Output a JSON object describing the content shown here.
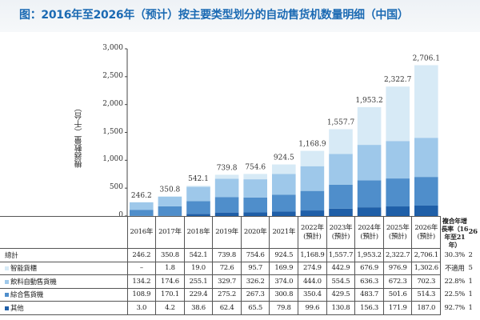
{
  "title": "图：2016年至2026年（预计）按主要类型划分的自动售货机数量明细（中国）",
  "chart_data": {
    "type": "stacked-bar",
    "ylabel": "機器數量（千台）",
    "ylim": [
      0,
      3000
    ],
    "yticks": [
      "0",
      "500",
      "1,000",
      "1,500",
      "2,000",
      "2,500",
      "3,000"
    ],
    "categories": [
      "2016年",
      "2017年",
      "2018年",
      "2019年",
      "2020年",
      "2021年",
      "2022年",
      "2023年",
      "2024年",
      "2025年",
      "2026年"
    ],
    "category_notes": [
      "",
      "",
      "",
      "",
      "",
      "",
      "(預計)",
      "(預計)",
      "(預計)",
      "(預計)",
      "(預計)"
    ],
    "totals": [
      246.2,
      350.8,
      542.1,
      739.8,
      754.6,
      924.5,
      1168.9,
      1557.7,
      1953.2,
      2322.7,
      2706.1
    ],
    "total_labels": [
      "246.2",
      "350.8",
      "542.1",
      "739.8",
      "754.6",
      "924.5",
      "1,168.9",
      "1,557.7",
      "1,953.2",
      "2,322.7",
      "2,706.1"
    ],
    "series": [
      {
        "name": "其他",
        "color": "#1f5fa8",
        "values": [
          3.0,
          4.2,
          38.6,
          62.4,
          65.5,
          79.8,
          99.6,
          130.8,
          156.3,
          171.9,
          187.0
        ]
      },
      {
        "name": "綜合售貨機",
        "color": "#4f8ecb",
        "values": [
          108.9,
          170.1,
          229.4,
          275.2,
          267.3,
          300.8,
          350.4,
          429.5,
          483.7,
          501.6,
          514.3
        ]
      },
      {
        "name": "飲料自動售貨機",
        "color": "#9ec8ea",
        "values": [
          134.2,
          174.6,
          255.1,
          329.7,
          326.2,
          374.0,
          444.0,
          554.5,
          636.3,
          672.3,
          702.3
        ]
      },
      {
        "name": "智能貨櫃",
        "color": "#d7eaf6",
        "values": [
          0,
          1.8,
          19.0,
          72.6,
          95.7,
          169.9,
          274.9,
          442.9,
          676.9,
          976.9,
          1302.6
        ]
      }
    ]
  },
  "table": {
    "cagr_header": "複合年增長率（16年至21年）",
    "cagr2_header": "26",
    "rows": [
      {
        "label": "總計",
        "cells": [
          "246.2",
          "350.8",
          "542.1",
          "739.8",
          "754.6",
          "924.5",
          "1,168.9",
          "1,557.7",
          "1,953.2",
          "2,322.7",
          "2,706.1"
        ],
        "cagr": "30.3%",
        "cagr2": "2",
        "color": ""
      },
      {
        "label": "智能貨櫃",
        "cells": [
          "–",
          "1.8",
          "19.0",
          "72.6",
          "95.7",
          "169.9",
          "274.9",
          "442.9",
          "676.9",
          "976.9",
          "1,302.6"
        ],
        "cagr": "不適用",
        "cagr2": "5",
        "color": "#d7eaf6"
      },
      {
        "label": "飲料自動售貨機",
        "cells": [
          "134.2",
          "174.6",
          "255.1",
          "329.7",
          "326.2",
          "374.0",
          "444.0",
          "554.5",
          "636.3",
          "672.3",
          "702.3"
        ],
        "cagr": "22.8%",
        "cagr2": "1",
        "color": "#9ec8ea"
      },
      {
        "label": "綜合售貨機",
        "cells": [
          "108.9",
          "170.1",
          "229.4",
          "275.2",
          "267.3",
          "300.8",
          "350.4",
          "429.5",
          "483.7",
          "501.6",
          "514.3"
        ],
        "cagr": "22.5%",
        "cagr2": "1",
        "color": "#4f8ecb"
      },
      {
        "label": "其他",
        "cells": [
          "3.0",
          "4.2",
          "38.6",
          "62.4",
          "65.5",
          "79.8",
          "99.6",
          "130.8",
          "156.3",
          "171.9",
          "187.0"
        ],
        "cagr": "92.7%",
        "cagr2": "1",
        "color": "#1f5fa8"
      }
    ]
  }
}
